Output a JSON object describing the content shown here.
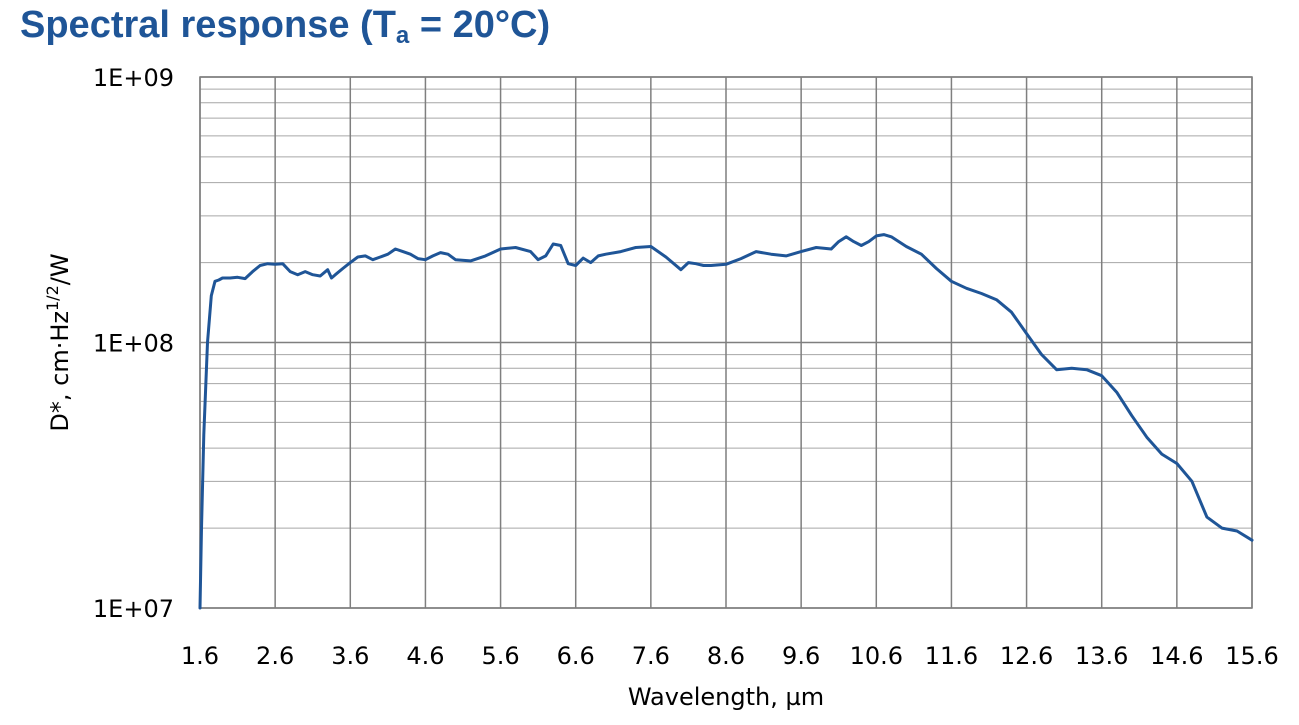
{
  "title": {
    "main": "Spectral response (T",
    "sub": "a",
    "tail": " = 20°C)"
  },
  "colors": {
    "title": "#1f5597",
    "series": "#1f5597",
    "grid": "#a6a6a6",
    "major_grid": "#7f7f7f"
  },
  "chart_data": {
    "type": "line",
    "xlabel": "Wavelength, µm",
    "ylabel": {
      "base": "D*, cm·Hz",
      "sup": "1/2",
      "tail": "/W"
    },
    "xlim": [
      1.6,
      15.6
    ],
    "ylim": [
      10000000,
      1000000000
    ],
    "yscale": "log",
    "grid": true,
    "legend": "none",
    "x_ticks": [
      "1.6",
      "2.6",
      "3.6",
      "4.6",
      "5.6",
      "6.6",
      "7.6",
      "8.6",
      "9.6",
      "10.6",
      "11.6",
      "12.6",
      "13.6",
      "14.6",
      "15.6"
    ],
    "y_ticks": [
      {
        "value": 10000000,
        "label": "1E+07"
      },
      {
        "value": 100000000,
        "label": "1E+08"
      },
      {
        "value": 1000000000,
        "label": "1E+09"
      }
    ],
    "series": [
      {
        "x": [
          1.6,
          1.62,
          1.65,
          1.7,
          1.75,
          1.8,
          1.85,
          1.9,
          2.0,
          2.1,
          2.2,
          2.3,
          2.4,
          2.5,
          2.6,
          2.7,
          2.8,
          2.9,
          3.0,
          3.1,
          3.2,
          3.3,
          3.35,
          3.4,
          3.5,
          3.6,
          3.7,
          3.8,
          3.9,
          4.0,
          4.1,
          4.2,
          4.3,
          4.4,
          4.5,
          4.6,
          4.7,
          4.8,
          4.9,
          5.0,
          5.2,
          5.4,
          5.6,
          5.8,
          6.0,
          6.1,
          6.2,
          6.3,
          6.4,
          6.5,
          6.6,
          6.7,
          6.8,
          6.9,
          7.0,
          7.2,
          7.4,
          7.6,
          7.8,
          8.0,
          8.1,
          8.2,
          8.3,
          8.4,
          8.6,
          8.8,
          9.0,
          9.2,
          9.4,
          9.6,
          9.8,
          10.0,
          10.1,
          10.2,
          10.3,
          10.4,
          10.5,
          10.6,
          10.7,
          10.8,
          11.0,
          11.2,
          11.4,
          11.6,
          11.8,
          12.0,
          12.2,
          12.4,
          12.6,
          12.8,
          13.0,
          13.2,
          13.4,
          13.6,
          13.8,
          14.0,
          14.2,
          14.4,
          14.6,
          14.8,
          15.0,
          15.2,
          15.4,
          15.6
        ],
        "y": [
          10000000,
          20000000,
          45000000,
          100000000,
          150000000,
          170000000,
          172000000,
          175000000,
          175000000,
          176000000,
          174000000,
          185000000,
          195000000,
          198000000,
          197000000,
          198000000,
          185000000,
          180000000,
          185000000,
          180000000,
          178000000,
          188000000,
          175000000,
          180000000,
          190000000,
          200000000,
          210000000,
          212000000,
          205000000,
          210000000,
          215000000,
          225000000,
          220000000,
          215000000,
          207000000,
          205000000,
          212000000,
          218000000,
          215000000,
          205000000,
          203000000,
          212000000,
          225000000,
          228000000,
          220000000,
          205000000,
          212000000,
          235000000,
          232000000,
          198000000,
          195000000,
          208000000,
          200000000,
          212000000,
          215000000,
          220000000,
          228000000,
          230000000,
          210000000,
          188000000,
          200000000,
          198000000,
          195000000,
          195000000,
          197000000,
          207000000,
          220000000,
          215000000,
          212000000,
          220000000,
          228000000,
          225000000,
          240000000,
          250000000,
          240000000,
          232000000,
          240000000,
          252000000,
          255000000,
          250000000,
          230000000,
          215000000,
          190000000,
          170000000,
          160000000,
          153000000,
          145000000,
          130000000,
          108000000,
          90000000,
          79000000,
          80000000,
          79000000,
          75000000,
          65000000,
          53000000,
          44000000,
          38000000,
          35000000,
          30000000,
          22000000,
          20000000,
          19500000,
          18000000
        ]
      }
    ]
  }
}
